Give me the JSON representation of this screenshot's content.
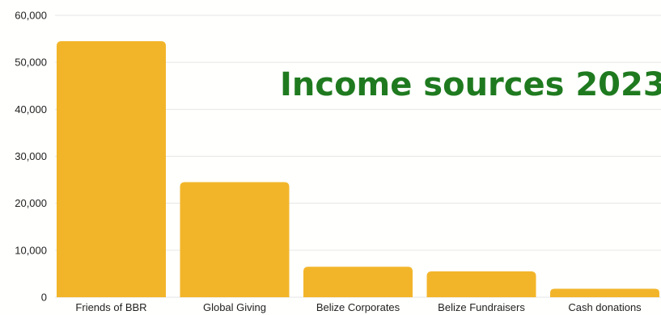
{
  "chart_data": {
    "type": "bar",
    "title": "Income sources 2023",
    "xlabel": "",
    "ylabel": "",
    "categories": [
      "Friends of BBR",
      "Global Giving",
      "Belize Corporates",
      "Belize Fundraisers",
      "Cash donations"
    ],
    "values": [
      54500,
      24500,
      6500,
      5500,
      1800
    ],
    "ylim": [
      0,
      60000
    ],
    "yticks": [
      0,
      10000,
      20000,
      30000,
      40000,
      50000,
      60000
    ],
    "ytick_labels": [
      "0",
      "10,000",
      "20,000",
      "30,000",
      "40,000",
      "50,000",
      "60,000"
    ],
    "grid": true,
    "legend": "none",
    "colors": {
      "bar": "#f2b52a",
      "title": "#1f7a1f",
      "grid": "#e6e6e6",
      "text": "#222222"
    }
  }
}
